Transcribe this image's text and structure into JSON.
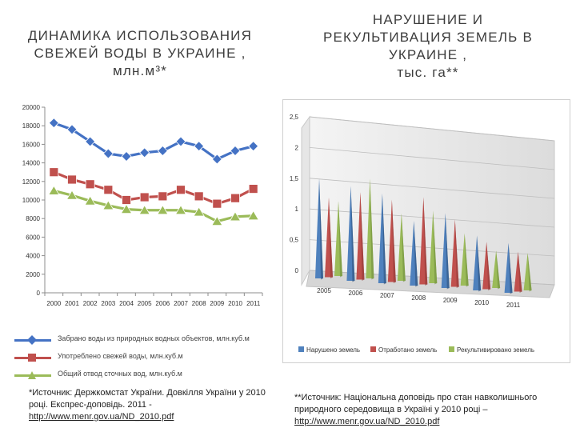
{
  "left": {
    "title_lines": [
      "ДИНАМИКА ИСПОЛЬЗОВАНИЯ",
      "СВЕЖЕЙ ВОДЫ В УКРАИНЕ ,",
      "млн.м³*"
    ],
    "source_text": "*Источник: Держкомстат України. Довкілля України у 2010 році. Експрес-доповідь. 2011 -",
    "source_link": "http://www.menr.gov.ua/ND_2010.pdf"
  },
  "right": {
    "title_lines": [
      "НАРУШЕНИЕ И",
      "РЕКУЛЬТИВАЦИЯ ЗЕМЕЛЬ В",
      "УКРАИНЕ ,",
      "тыс. га**"
    ],
    "source_text": "**Источник: Національна доповідь про стан навколишнього природного середовища в Україні у 2010 році –",
    "source_link": "http://www.menr.gov.ua/ND_2010.pdf"
  },
  "chart_data": [
    {
      "type": "line",
      "x": [
        "2000",
        "2001",
        "2002",
        "2003",
        "2004",
        "2005",
        "2006",
        "2007",
        "2008",
        "2009",
        "2010",
        "2011"
      ],
      "ylim": [
        0,
        20000
      ],
      "yticks": [
        0,
        2000,
        4000,
        6000,
        8000,
        10000,
        12000,
        14000,
        16000,
        18000,
        20000
      ],
      "grid": false,
      "legend_position": "bottom",
      "series": [
        {
          "name": "Забрано воды из природных водных объектов, млн.куб.м",
          "color": "#4472C4",
          "marker": "diamond",
          "values": [
            18300,
            17600,
            16300,
            15000,
            14700,
            15100,
            15300,
            16300,
            15800,
            14400,
            15300,
            15800
          ]
        },
        {
          "name": "Употреблено свежей воды, млн.куб.м",
          "color": "#C0504D",
          "marker": "square",
          "values": [
            13000,
            12200,
            11700,
            11100,
            10000,
            10300,
            10400,
            11100,
            10400,
            9600,
            10200,
            11200
          ]
        },
        {
          "name": "Общий отвод сточных вод, млн.куб.м",
          "color": "#9BBB59",
          "marker": "triangle",
          "values": [
            11000,
            10500,
            9900,
            9400,
            9000,
            8900,
            8900,
            8900,
            8700,
            7700,
            8200,
            8300
          ]
        }
      ]
    },
    {
      "type": "bar",
      "style": "3d-cone",
      "categories": [
        "2005",
        "2006",
        "2007",
        "2008",
        "2009",
        "2010",
        "2011"
      ],
      "ylim": [
        0,
        2.5
      ],
      "yticks": [
        0,
        0.5,
        1,
        1.5,
        2,
        2.5
      ],
      "grid": true,
      "legend_position": "bottom",
      "series": [
        {
          "name": "Нарушено земель",
          "color": "#4F81BD",
          "values": [
            2.0,
            1.9,
            1.8,
            1.3,
            1.5,
            1.1,
            1.0
          ]
        },
        {
          "name": "Отработано земель",
          "color": "#C0504D",
          "values": [
            1.6,
            1.75,
            1.65,
            1.75,
            1.35,
            0.95,
            0.8
          ]
        },
        {
          "name": "Рекультивировано земель",
          "color": "#9BBB59",
          "values": [
            1.5,
            2.0,
            1.35,
            1.45,
            1.05,
            0.75,
            0.75
          ]
        }
      ]
    }
  ]
}
